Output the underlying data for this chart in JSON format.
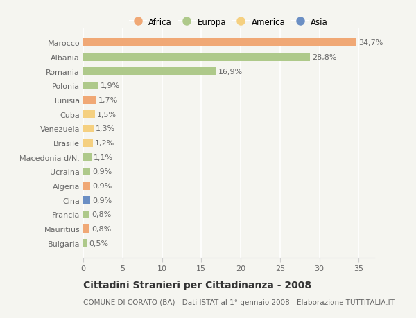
{
  "countries": [
    "Marocco",
    "Albania",
    "Romania",
    "Polonia",
    "Tunisia",
    "Cuba",
    "Venezuela",
    "Brasile",
    "Macedonia d/N.",
    "Ucraina",
    "Algeria",
    "Cina",
    "Francia",
    "Mauritius",
    "Bulgaria"
  ],
  "values": [
    34.7,
    28.8,
    16.9,
    1.9,
    1.7,
    1.5,
    1.3,
    1.2,
    1.1,
    0.9,
    0.9,
    0.9,
    0.8,
    0.8,
    0.5
  ],
  "labels": [
    "34,7%",
    "28,8%",
    "16,9%",
    "1,9%",
    "1,7%",
    "1,5%",
    "1,3%",
    "1,2%",
    "1,1%",
    "0,9%",
    "0,9%",
    "0,9%",
    "0,8%",
    "0,8%",
    "0,5%"
  ],
  "colors": [
    "#f0a875",
    "#aec98a",
    "#aec98a",
    "#aec98a",
    "#f0a875",
    "#f5d080",
    "#f5d080",
    "#f5d080",
    "#aec98a",
    "#aec98a",
    "#f0a875",
    "#6b8fc4",
    "#aec98a",
    "#f0a875",
    "#aec98a"
  ],
  "legend_labels": [
    "Africa",
    "Europa",
    "America",
    "Asia"
  ],
  "legend_colors": [
    "#f0a875",
    "#aec98a",
    "#f5d080",
    "#6b8fc4"
  ],
  "title": "Cittadini Stranieri per Cittadinanza - 2008",
  "subtitle": "COMUNE DI CORATO (BA) - Dati ISTAT al 1° gennaio 2008 - Elaborazione TUTTITALIA.IT",
  "xlim": [
    0,
    37
  ],
  "xticks": [
    0,
    5,
    10,
    15,
    20,
    25,
    30,
    35
  ],
  "bg_color": "#f5f5f0",
  "bar_height": 0.55,
  "title_fontsize": 10,
  "subtitle_fontsize": 7.5,
  "label_fontsize": 8,
  "tick_fontsize": 8,
  "legend_fontsize": 8.5
}
